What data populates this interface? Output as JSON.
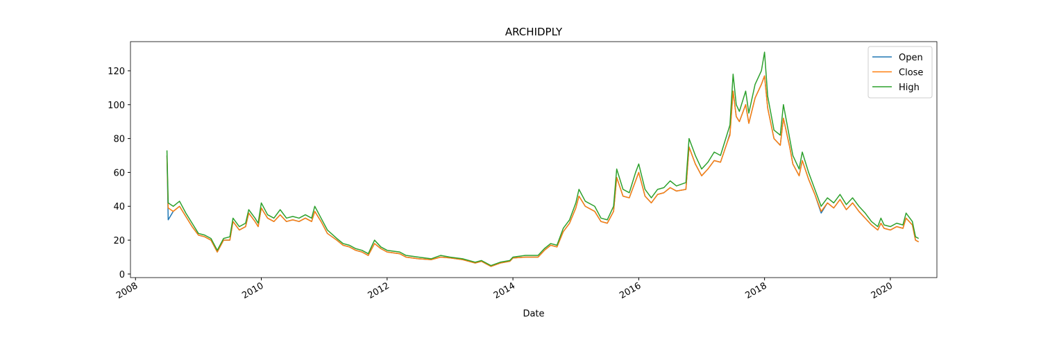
{
  "chart_data": {
    "type": "line",
    "title": "ARCHIDPLY",
    "xlabel": "Date",
    "x": [
      2008.5,
      2008.52,
      2008.6,
      2008.7,
      2008.8,
      2008.9,
      2009.0,
      2009.1,
      2009.2,
      2009.3,
      2009.4,
      2009.5,
      2009.55,
      2009.65,
      2009.75,
      2009.8,
      2009.9,
      2009.95,
      2010.0,
      2010.1,
      2010.2,
      2010.3,
      2010.4,
      2010.5,
      2010.6,
      2010.7,
      2010.8,
      2010.85,
      2010.95,
      2011.05,
      2011.2,
      2011.3,
      2011.4,
      2011.5,
      2011.6,
      2011.7,
      2011.8,
      2011.9,
      2012.0,
      2012.2,
      2012.3,
      2012.5,
      2012.7,
      2012.85,
      2013.0,
      2013.2,
      2013.4,
      2013.5,
      2013.65,
      2013.8,
      2013.95,
      2014.0,
      2014.2,
      2014.4,
      2014.5,
      2014.6,
      2014.7,
      2014.8,
      2014.9,
      2015.0,
      2015.05,
      2015.15,
      2015.3,
      2015.4,
      2015.5,
      2015.6,
      2015.65,
      2015.75,
      2015.85,
      2015.95,
      2016.0,
      2016.1,
      2016.2,
      2016.3,
      2016.4,
      2016.5,
      2016.6,
      2016.75,
      2016.8,
      2016.9,
      2017.0,
      2017.1,
      2017.2,
      2017.3,
      2017.4,
      2017.45,
      2017.5,
      2017.55,
      2017.6,
      2017.7,
      2017.75,
      2017.85,
      2017.95,
      2018.0,
      2018.05,
      2018.1,
      2018.15,
      2018.25,
      2018.3,
      2018.4,
      2018.45,
      2018.55,
      2018.6,
      2018.7,
      2018.8,
      2018.9,
      2019.0,
      2019.1,
      2019.2,
      2019.3,
      2019.4,
      2019.5,
      2019.6,
      2019.7,
      2019.8,
      2019.85,
      2019.9,
      2020.0,
      2020.1,
      2020.2,
      2020.25,
      2020.35,
      2020.4,
      2020.45
    ],
    "series": [
      {
        "name": "Open",
        "color": "#1f77b4",
        "values": [
          70,
          32,
          37,
          40,
          34,
          28,
          23,
          22,
          20,
          13,
          20,
          20,
          31,
          26,
          28,
          36,
          31,
          28,
          39,
          33,
          31,
          35,
          31,
          32,
          31,
          33,
          31,
          37,
          31,
          24,
          20,
          17,
          16,
          14,
          13,
          11,
          18,
          15,
          13,
          12,
          10,
          9,
          8.5,
          10,
          9.5,
          8.5,
          6.5,
          7.5,
          4.5,
          6.5,
          7.5,
          9.5,
          10,
          10,
          14,
          17,
          16,
          25,
          30,
          39,
          46,
          40,
          37,
          31,
          30,
          37,
          57,
          46,
          45,
          55,
          60,
          46,
          42,
          47,
          48,
          51,
          49,
          50,
          75,
          65,
          58,
          62,
          67,
          66,
          77,
          83,
          108,
          93,
          90,
          100,
          89,
          104,
          112,
          117,
          98,
          89,
          80,
          76,
          92,
          75,
          65,
          58,
          67,
          56,
          47,
          36,
          42,
          39,
          44,
          38,
          42,
          37,
          33,
          29,
          26,
          30,
          27,
          26,
          28,
          27,
          33,
          29,
          20,
          19
        ]
      },
      {
        "name": "Close",
        "color": "#ff7f0e",
        "values": [
          70,
          39,
          37,
          40,
          34,
          28,
          23,
          22,
          20,
          13,
          20,
          20,
          31,
          26,
          28,
          36,
          31,
          28,
          39,
          33,
          31,
          35,
          31,
          32,
          31,
          33,
          31,
          37,
          31,
          24,
          20,
          17,
          16,
          14,
          13,
          11,
          18,
          15,
          13,
          12,
          10,
          9,
          8.5,
          10,
          9.5,
          8.5,
          6.5,
          7.5,
          4.5,
          6.5,
          7.5,
          9.5,
          10,
          10,
          14,
          17,
          16,
          25,
          30,
          39,
          46,
          40,
          37,
          31,
          30,
          37,
          57,
          46,
          45,
          55,
          60,
          46,
          42,
          47,
          48,
          51,
          49,
          50,
          75,
          65,
          58,
          62,
          67,
          66,
          77,
          82,
          108,
          93,
          90,
          100,
          89,
          104,
          112,
          117,
          98,
          89,
          80,
          76,
          92,
          75,
          65,
          58,
          67,
          56,
          47,
          37,
          42,
          39,
          44,
          38,
          42,
          37,
          33,
          29,
          26,
          30,
          27,
          26,
          28,
          27,
          33,
          29,
          20,
          19
        ]
      },
      {
        "name": "High",
        "color": "#2ca02c",
        "values": [
          73,
          42,
          40,
          43,
          36,
          30,
          24,
          23,
          21,
          14,
          21,
          22,
          33,
          28,
          30,
          38,
          33,
          30,
          42,
          35,
          33,
          38,
          33,
          34,
          33,
          35,
          33,
          40,
          33,
          26,
          21,
          18,
          17,
          15,
          14,
          12,
          20,
          16,
          14,
          13,
          11,
          10,
          9,
          11,
          10,
          9,
          7,
          8,
          5,
          7,
          8,
          10,
          11,
          11,
          15,
          18,
          17,
          27,
          32,
          42,
          50,
          43,
          40,
          33,
          32,
          40,
          62,
          50,
          48,
          60,
          65,
          50,
          45,
          50,
          51,
          55,
          52,
          54,
          80,
          70,
          62,
          66,
          72,
          70,
          82,
          88,
          118,
          100,
          96,
          108,
          95,
          112,
          120,
          131,
          105,
          95,
          85,
          82,
          100,
          80,
          70,
          62,
          72,
          60,
          50,
          40,
          45,
          42,
          47,
          41,
          45,
          40,
          36,
          31,
          28,
          33,
          29,
          28,
          30,
          29,
          36,
          31,
          22,
          21
        ]
      }
    ],
    "xlim": [
      2007.92,
      2020.74
    ],
    "xticks": [
      2008,
      2010,
      2012,
      2014,
      2016,
      2018,
      2020
    ],
    "ylim": [
      -2.1,
      137.2
    ],
    "yticks": [
      0,
      20,
      40,
      60,
      80,
      100,
      120
    ],
    "legend": "upper right"
  }
}
